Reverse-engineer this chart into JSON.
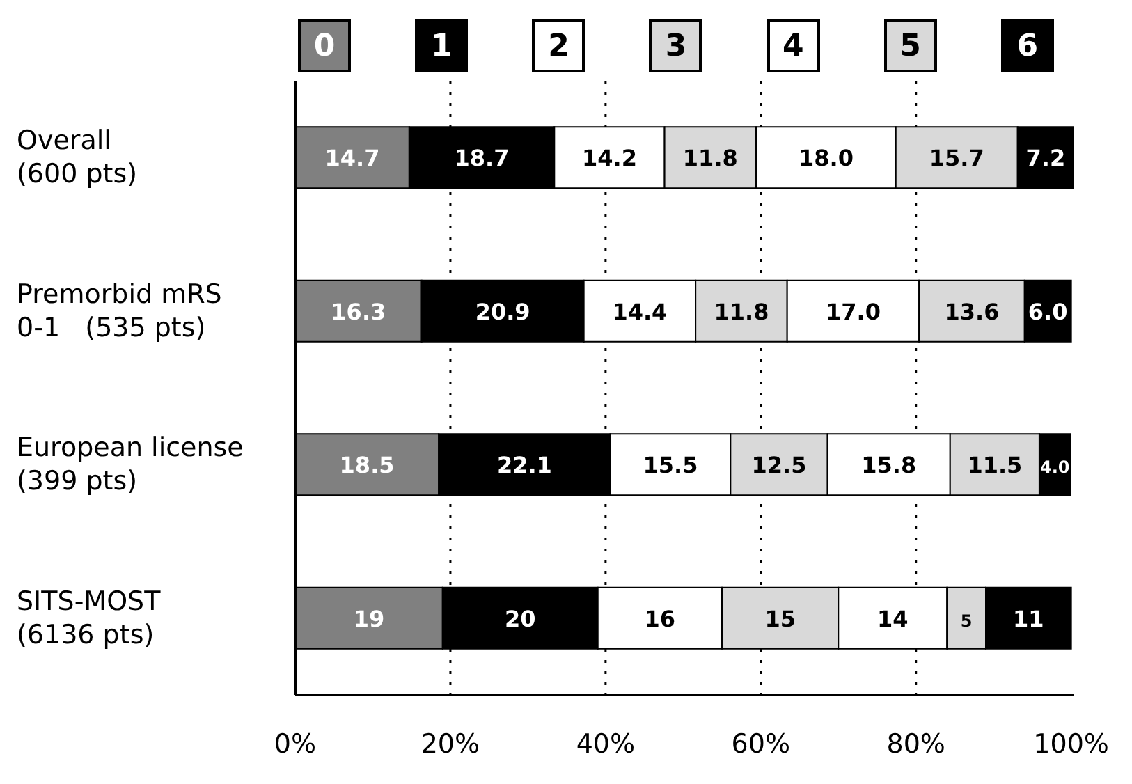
{
  "chart_data": {
    "type": "bar",
    "orientation": "horizontal",
    "stacked": true,
    "categories": [
      "Overall\n(600 pts)",
      "Premorbid mRS\n0-1   (535 pts)",
      "European license\n(399 pts)",
      "SITS-MOST\n(6136 pts)"
    ],
    "series": [
      {
        "name": "0",
        "color": "#808080",
        "values": [
          14.7,
          16.3,
          18.5,
          19
        ],
        "value_labels": [
          "14.7",
          "16.3",
          "18.5",
          "19"
        ]
      },
      {
        "name": "1",
        "color": "#000000",
        "values": [
          18.7,
          20.9,
          22.1,
          20
        ],
        "value_labels": [
          "18.7",
          "20.9",
          "22.1",
          "20"
        ]
      },
      {
        "name": "2",
        "color": "#ffffff",
        "values": [
          14.2,
          14.4,
          15.5,
          16
        ],
        "value_labels": [
          "14.2",
          "14.4",
          "15.5",
          "16"
        ]
      },
      {
        "name": "3",
        "color": "#d9d9d9",
        "values": [
          11.8,
          11.8,
          12.5,
          15
        ],
        "value_labels": [
          "11.8",
          "11.8",
          "12.5",
          "15"
        ]
      },
      {
        "name": "4",
        "color": "#ffffff",
        "values": [
          18.0,
          17.0,
          15.8,
          14
        ],
        "value_labels": [
          "18.0",
          "17.0",
          "15.8",
          "14"
        ]
      },
      {
        "name": "5",
        "color": "#d9d9d9",
        "values": [
          15.7,
          13.6,
          11.5,
          5
        ],
        "value_labels": [
          "15.7",
          "13.6",
          "11.5",
          "5"
        ]
      },
      {
        "name": "6",
        "color": "#000000",
        "values": [
          7.2,
          6.0,
          4.0,
          11
        ],
        "value_labels": [
          "7.2",
          "6.0",
          "4.0",
          "11"
        ]
      }
    ],
    "xlim": [
      0,
      100.3
    ],
    "xticks": [
      {
        "value": 0,
        "label": "0%"
      },
      {
        "value": 20,
        "label": "20%"
      },
      {
        "value": 40,
        "label": "40%"
      },
      {
        "value": 60,
        "label": "60%"
      },
      {
        "value": 80,
        "label": "80%"
      },
      {
        "value": 100,
        "label": "100%"
      }
    ],
    "grid": "x",
    "line_style": "dotted",
    "legend": "top"
  }
}
